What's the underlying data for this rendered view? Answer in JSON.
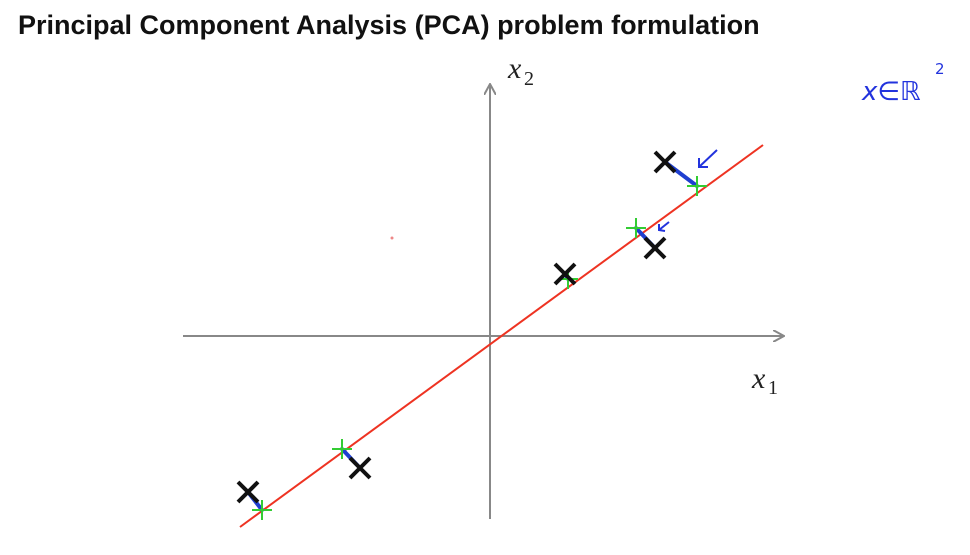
{
  "header": {
    "title": "Principal Component Analysis (PCA) problem formulation"
  },
  "axes": {
    "x_label": {
      "base": "x",
      "sub": "1"
    },
    "y_label": {
      "base": "x",
      "sub": "2"
    }
  },
  "annotation": {
    "text": "x∈ℝ",
    "sup": "2"
  }
}
